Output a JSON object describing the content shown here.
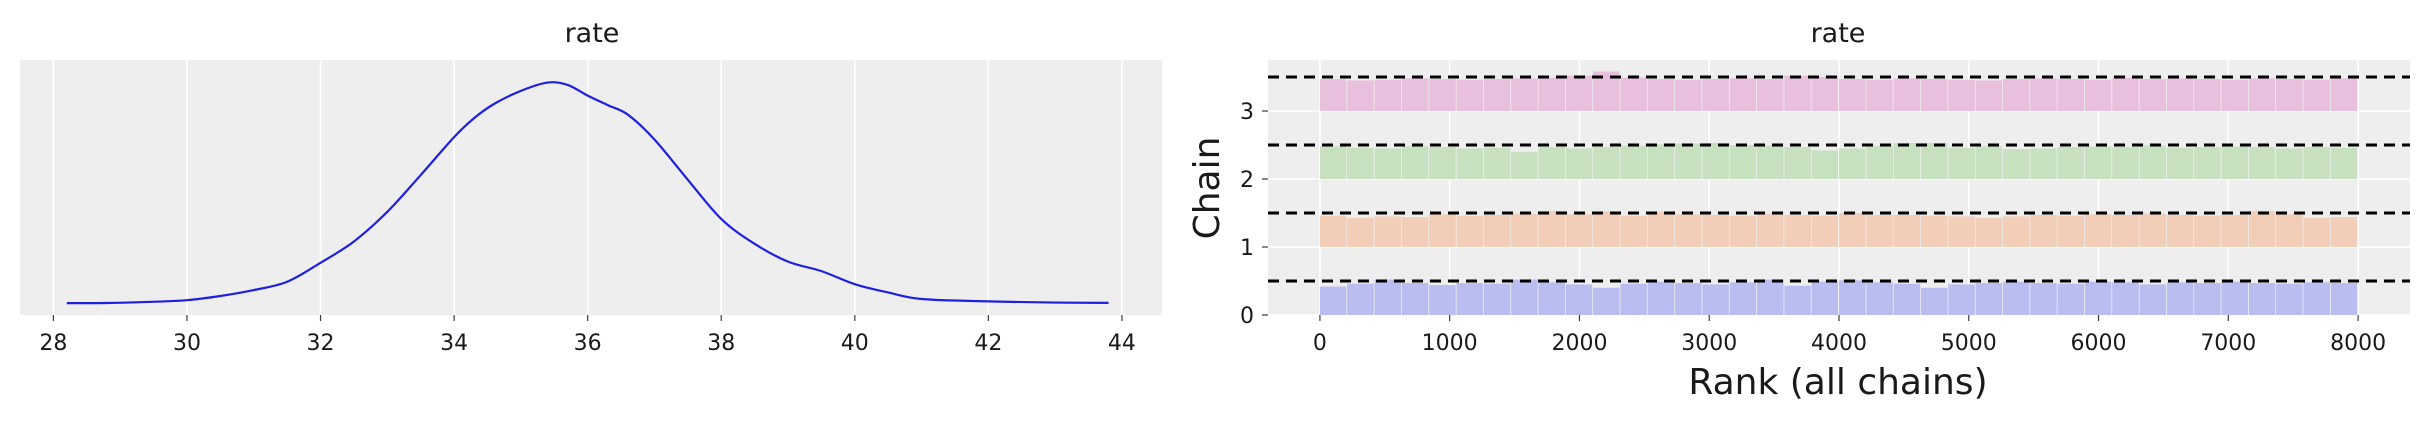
{
  "chart_data": [
    {
      "type": "line",
      "title": "rate",
      "xlabel": "",
      "ylabel": "",
      "xlim": [
        27.5,
        44.6
      ],
      "ylim": [
        -0.01,
        0.205
      ],
      "xticks": [
        28,
        30,
        32,
        34,
        36,
        38,
        40,
        42,
        44
      ],
      "yticks": [],
      "grid": true,
      "color": "#1f1fe0",
      "series": [
        {
          "x": [
            28.2,
            28.8,
            29.4,
            30.0,
            30.5,
            31.0,
            31.5,
            32.0,
            32.5,
            33.0,
            33.5,
            34.0,
            34.3,
            34.6,
            35.0,
            35.4,
            35.7,
            36.0,
            36.3,
            36.6,
            37.0,
            37.5,
            38.0,
            38.5,
            39.0,
            39.5,
            40.0,
            40.5,
            41.0,
            42.0,
            43.0,
            43.8
          ],
          "y": [
            0.0,
            0.0001,
            0.001,
            0.0025,
            0.006,
            0.011,
            0.018,
            0.034,
            0.052,
            0.077,
            0.108,
            0.14,
            0.156,
            0.168,
            0.179,
            0.186,
            0.184,
            0.175,
            0.167,
            0.159,
            0.138,
            0.104,
            0.071,
            0.05,
            0.035,
            0.027,
            0.016,
            0.009,
            0.0035,
            0.0015,
            0.0005,
            0.0002
          ]
        }
      ]
    },
    {
      "type": "bar",
      "title": "rate",
      "xlabel": "Rank (all chains)",
      "ylabel": "Chain",
      "xlim": [
        -400,
        8400
      ],
      "ylim": [
        0,
        3.75
      ],
      "xticks": [
        0,
        1000,
        2000,
        3000,
        4000,
        5000,
        6000,
        7000,
        8000
      ],
      "yticks": [
        0,
        1,
        2,
        3
      ],
      "grid": true,
      "bin_edges": [
        0,
        210,
        421,
        632,
        842,
        1053,
        1263,
        1474,
        1684,
        1895,
        2105,
        2316,
        2526,
        2737,
        2947,
        3158,
        3368,
        3579,
        3789,
        4000,
        4211,
        4421,
        4632,
        4842,
        5053,
        5263,
        5474,
        5684,
        5895,
        6105,
        6316,
        6526,
        6737,
        6947,
        7158,
        7368,
        7579,
        7789,
        8000
      ],
      "reference_level": 0.5,
      "series": [
        {
          "name": "0",
          "color": "#b9bdf0",
          "baseline": 0,
          "values": [
            0.42,
            0.46,
            0.52,
            0.47,
            0.44,
            0.47,
            0.46,
            0.52,
            0.48,
            0.45,
            0.4,
            0.46,
            0.49,
            0.47,
            0.45,
            0.48,
            0.52,
            0.43,
            0.49,
            0.51,
            0.48,
            0.46,
            0.4,
            0.45,
            0.47,
            0.49,
            0.47,
            0.46,
            0.49,
            0.48,
            0.45,
            0.48,
            0.47,
            0.49,
            0.47,
            0.46,
            0.48,
            0.47
          ]
        },
        {
          "name": "1",
          "color": "#f2cdb7",
          "baseline": 1,
          "values": [
            0.46,
            0.43,
            0.45,
            0.44,
            0.48,
            0.46,
            0.47,
            0.49,
            0.53,
            0.48,
            0.52,
            0.46,
            0.52,
            0.48,
            0.47,
            0.46,
            0.49,
            0.47,
            0.46,
            0.5,
            0.47,
            0.47,
            0.46,
            0.45,
            0.43,
            0.45,
            0.47,
            0.46,
            0.48,
            0.47,
            0.49,
            0.47,
            0.46,
            0.47,
            0.53,
            0.48,
            0.43,
            0.44
          ]
        },
        {
          "name": "2",
          "color": "#c7e0c0",
          "baseline": 2,
          "values": [
            0.48,
            0.46,
            0.45,
            0.48,
            0.47,
            0.45,
            0.46,
            0.4,
            0.47,
            0.45,
            0.47,
            0.49,
            0.51,
            0.52,
            0.53,
            0.5,
            0.49,
            0.47,
            0.42,
            0.45,
            0.49,
            0.53,
            0.53,
            0.46,
            0.48,
            0.44,
            0.45,
            0.47,
            0.48,
            0.47,
            0.49,
            0.46,
            0.47,
            0.48,
            0.47,
            0.45,
            0.47,
            0.46
          ]
        },
        {
          "name": "3",
          "color": "#e8c0de",
          "baseline": 3,
          "values": [
            0.47,
            0.45,
            0.46,
            0.48,
            0.47,
            0.46,
            0.47,
            0.48,
            0.49,
            0.52,
            0.58,
            0.49,
            0.47,
            0.46,
            0.47,
            0.48,
            0.47,
            0.52,
            0.5,
            0.47,
            0.46,
            0.48,
            0.47,
            0.46,
            0.45,
            0.47,
            0.48,
            0.47,
            0.46,
            0.49,
            0.47,
            0.48,
            0.47,
            0.46,
            0.48,
            0.47,
            0.46,
            0.48
          ]
        }
      ]
    }
  ]
}
